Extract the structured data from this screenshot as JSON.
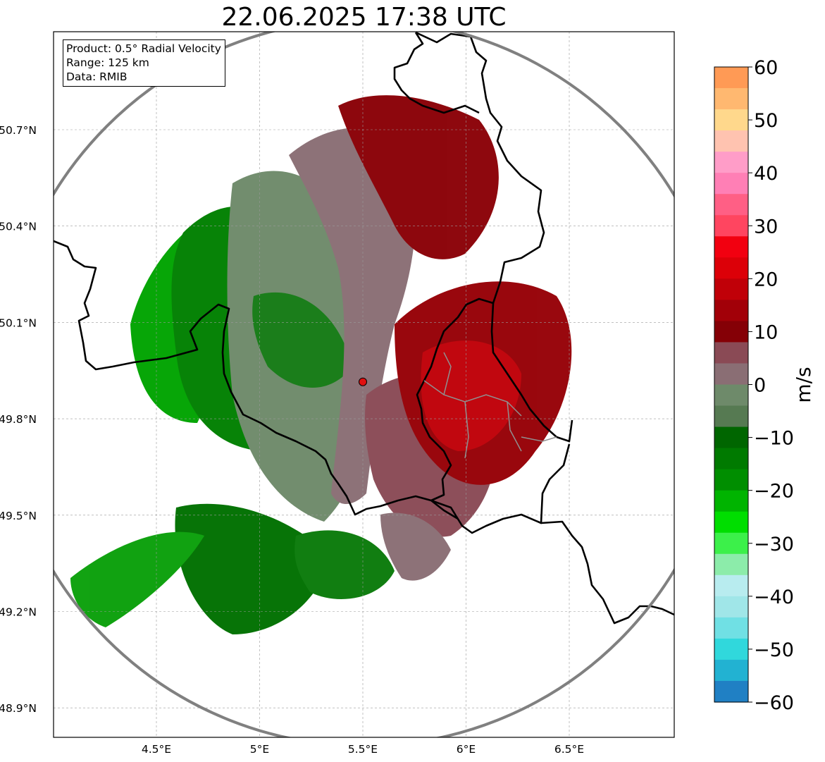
{
  "title": "22.06.2025 17:38 UTC",
  "info": {
    "product": "Product: 0.5° Radial Velocity",
    "range": "Range: 125 km",
    "data": "Data: RMIB"
  },
  "axes": {
    "lon_ticks": [
      "4.5°E",
      "5°E",
      "5.5°E",
      "6°E",
      "6.5°E"
    ],
    "lat_ticks": [
      "50.7°N",
      "50.4°N",
      "50.1°N",
      "49.8°N",
      "49.5°N",
      "49.2°N",
      "48.9°N"
    ],
    "lon_range": [
      4.0,
      7.0
    ],
    "lat_range": [
      48.8,
      51.0
    ],
    "grid": "dashed"
  },
  "radar": {
    "site_lon": 5.5,
    "site_lat": 49.915,
    "range_km": 125,
    "marker_color": "#e01010",
    "range_ring_color": "#808080"
  },
  "colorbar": {
    "unit": "m/s",
    "min": -60,
    "max": 60,
    "tick_labels": [
      "60",
      "50",
      "40",
      "30",
      "20",
      "10",
      "0",
      "−10",
      "−20",
      "−30",
      "−40",
      "−50",
      "−60"
    ],
    "bands": [
      {
        "from": 56,
        "to": 60,
        "color": "#ff9a55"
      },
      {
        "from": 52,
        "to": 56,
        "color": "#ffb870"
      },
      {
        "from": 48,
        "to": 52,
        "color": "#ffd88c"
      },
      {
        "from": 44,
        "to": 48,
        "color": "#ffc3b0"
      },
      {
        "from": 40,
        "to": 44,
        "color": "#ff9dc8"
      },
      {
        "from": 36,
        "to": 40,
        "color": "#ff7fb5"
      },
      {
        "from": 32,
        "to": 36,
        "color": "#ff5f85"
      },
      {
        "from": 28,
        "to": 32,
        "color": "#ff4560"
      },
      {
        "from": 24,
        "to": 28,
        "color": "#f20010"
      },
      {
        "from": 20,
        "to": 24,
        "color": "#dc0008"
      },
      {
        "from": 16,
        "to": 20,
        "color": "#c00008"
      },
      {
        "from": 12,
        "to": 16,
        "color": "#a20008"
      },
      {
        "from": 8,
        "to": 12,
        "color": "#850006"
      },
      {
        "from": 4,
        "to": 8,
        "color": "#8a4a55"
      },
      {
        "from": 0,
        "to": 4,
        "color": "#8a6e74"
      },
      {
        "from": -4,
        "to": 0,
        "color": "#6e8a6a"
      },
      {
        "from": -8,
        "to": -4,
        "color": "#567a52"
      },
      {
        "from": -12,
        "to": -8,
        "color": "#006600"
      },
      {
        "from": -16,
        "to": -12,
        "color": "#007a00"
      },
      {
        "from": -20,
        "to": -16,
        "color": "#008e00"
      },
      {
        "from": -24,
        "to": -20,
        "color": "#00b400"
      },
      {
        "from": -28,
        "to": -24,
        "color": "#00de00"
      },
      {
        "from": -32,
        "to": -28,
        "color": "#3cf04a"
      },
      {
        "from": -36,
        "to": -32,
        "color": "#8cecaa"
      },
      {
        "from": -40,
        "to": -36,
        "color": "#b8ecef"
      },
      {
        "from": -44,
        "to": -40,
        "color": "#a0e6e8"
      },
      {
        "from": -48,
        "to": -44,
        "color": "#70e0e4"
      },
      {
        "from": -52,
        "to": -48,
        "color": "#30d8dc"
      },
      {
        "from": -56,
        "to": -52,
        "color": "#22b2d2"
      },
      {
        "from": -60,
        "to": -56,
        "color": "#2080c4"
      }
    ]
  }
}
